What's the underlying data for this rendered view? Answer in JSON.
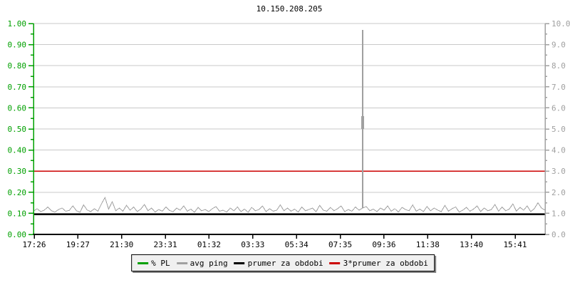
{
  "colors": {
    "background": "#ffffff",
    "grid": "#c9c9c9",
    "axis_left": "#00a000",
    "axis_right": "#a0a0a0",
    "axis_bottom": "#000000",
    "title_text": "#000000",
    "x_label_text": "#000000",
    "legend_bg": "#f0f0f0",
    "legend_border": "#000000",
    "legend_shadow": "#808080"
  },
  "chart_data": {
    "type": "line",
    "title": "10.150.208.205",
    "x_ticks": [
      "17:26",
      "19:27",
      "21:30",
      "23:31",
      "01:32",
      "03:33",
      "05:34",
      "07:35",
      "09:36",
      "11:38",
      "13:40",
      "15:41"
    ],
    "left_axis": {
      "min": 0,
      "max": 1,
      "tick_step": 0.1,
      "minor_step": 0.05,
      "color": "#00a000",
      "ticks": [
        "1.00",
        "0.90",
        "0.80",
        "0.70",
        "0.60",
        "0.50",
        "0.40",
        "0.30",
        "0.20",
        "0.10",
        "0.00"
      ]
    },
    "right_axis": {
      "min": 0,
      "max": 10,
      "tick_step": 1,
      "minor_step": 0.5,
      "color": "#a0a0a0",
      "ticks": [
        "10.0",
        "9.0",
        "8.0",
        "7.0",
        "6.0",
        "5.0",
        "4.0",
        "3.0",
        "2.0",
        "1.0",
        "0.0"
      ]
    },
    "grid": {
      "horizontal": true,
      "vertical": false
    },
    "legend_position": "bottom-center",
    "series": [
      {
        "name": "% PL",
        "color": "#00a000",
        "type": "flat",
        "axis": "left",
        "value": 0,
        "width": 1.5
      },
      {
        "name": "avg ping",
        "color": "#a0a0a0",
        "type": "line",
        "axis": "right",
        "width": 1,
        "points": [
          1.1,
          1.22,
          1.08,
          1.15,
          1.3,
          1.12,
          1.06,
          1.18,
          1.25,
          1.1,
          1.14,
          1.35,
          1.12,
          1.05,
          1.4,
          1.16,
          1.08,
          1.22,
          1.1,
          1.45,
          1.75,
          1.2,
          1.55,
          1.12,
          1.25,
          1.1,
          1.38,
          1.15,
          1.3,
          1.08,
          1.2,
          1.42,
          1.12,
          1.25,
          1.06,
          1.18,
          1.1,
          1.3,
          1.14,
          1.08,
          1.25,
          1.15,
          1.35,
          1.1,
          1.2,
          1.05,
          1.28,
          1.12,
          1.18,
          1.08,
          1.22,
          1.32,
          1.1,
          1.15,
          1.06,
          1.25,
          1.12,
          1.3,
          1.08,
          1.2,
          1.05,
          1.28,
          1.12,
          1.18,
          1.35,
          1.08,
          1.22,
          1.1,
          1.15,
          1.4,
          1.12,
          1.25,
          1.1,
          1.2,
          1.06,
          1.3,
          1.12,
          1.18,
          1.25,
          1.08,
          1.38,
          1.15,
          1.1,
          1.28,
          1.12,
          1.22,
          1.35,
          1.08,
          1.18,
          1.1,
          1.3,
          1.15,
          1.25,
          1.32,
          1.12,
          1.2,
          1.08,
          1.25,
          1.15,
          1.35,
          1.1,
          1.22,
          1.06,
          1.28,
          1.18,
          1.12,
          1.4,
          1.1,
          1.2,
          1.08,
          1.32,
          1.12,
          1.25,
          1.15,
          1.08,
          1.38,
          1.1,
          1.22,
          1.3,
          1.06,
          1.15,
          1.28,
          1.1,
          1.2,
          1.35,
          1.08,
          1.25,
          1.12,
          1.18,
          1.42,
          1.1,
          1.3,
          1.12,
          1.2,
          1.45,
          1.1,
          1.28,
          1.15,
          1.35,
          1.08,
          1.22,
          1.5,
          1.25,
          1.15
        ],
        "spike": {
          "index": 92,
          "value": 9.7
        },
        "spike_marker": {
          "index": 92,
          "from": 5.0,
          "to": 5.6
        }
      },
      {
        "name": "prumer za obdobi",
        "color": "#000000",
        "type": "flat",
        "axis": "right",
        "value": 0.95,
        "width": 2.5
      },
      {
        "name": "3*prumer za obdobi",
        "color": "#cc0000",
        "type": "flat",
        "axis": "right",
        "value": 3.0,
        "width": 1.5
      }
    ]
  }
}
